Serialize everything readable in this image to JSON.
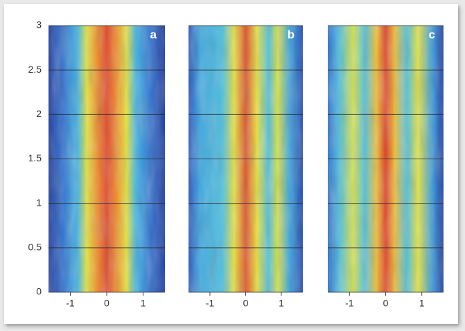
{
  "chart_data": [
    {
      "type": "heatmap",
      "label": "a",
      "xlim": [
        -1.6,
        1.6
      ],
      "xticks": [
        -1,
        0,
        1
      ],
      "ylim": [
        0,
        3
      ],
      "yticks": [
        0,
        0.5,
        1,
        1.5,
        2,
        2.5,
        3
      ],
      "grid": true
    },
    {
      "type": "heatmap",
      "label": "b",
      "xlim": [
        -1.6,
        1.6
      ],
      "xticks": [
        -1,
        0,
        1
      ],
      "ylim": [
        0,
        3
      ],
      "yticks": [
        0,
        0.5,
        1,
        1.5,
        2,
        2.5,
        3
      ],
      "grid": true
    },
    {
      "type": "heatmap",
      "label": "c",
      "xlim": [
        -1.6,
        1.6
      ],
      "xticks": [
        -1,
        0,
        1
      ],
      "ylim": [
        0,
        3
      ],
      "yticks": [
        0,
        0.5,
        1,
        1.5,
        2,
        2.5,
        3
      ],
      "grid": true
    }
  ]
}
